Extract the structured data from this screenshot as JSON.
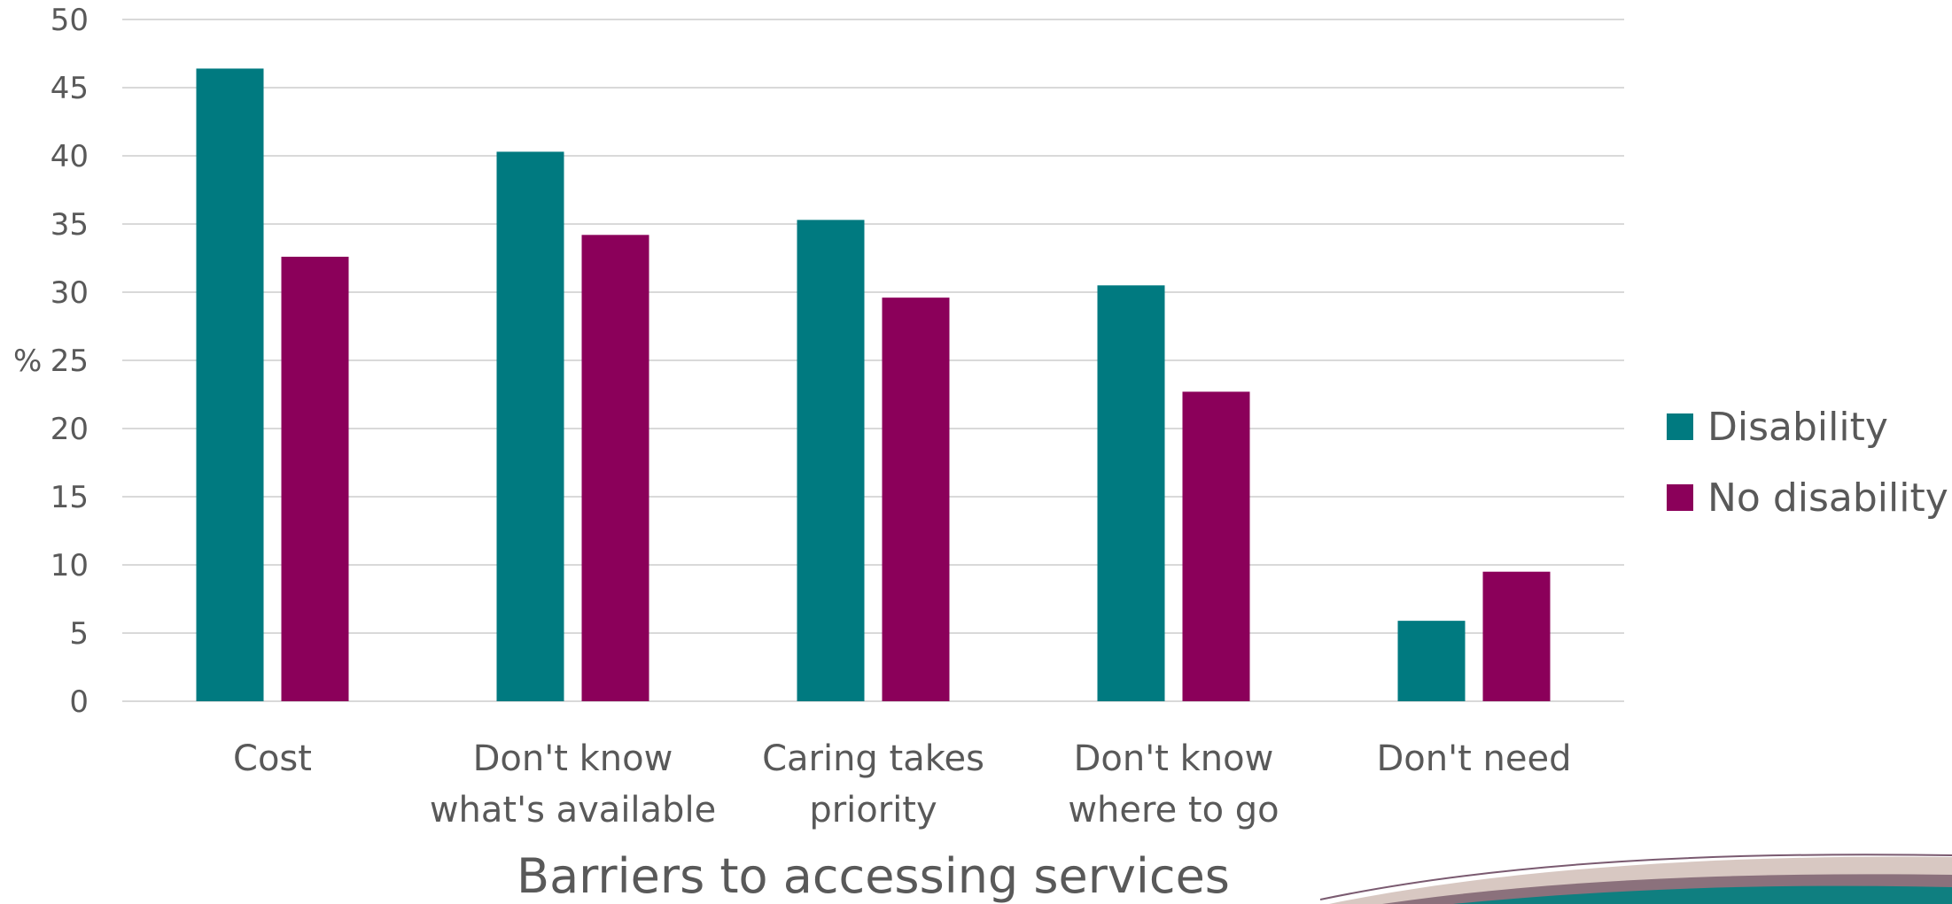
{
  "chart_data": {
    "type": "bar",
    "categories": [
      [
        "Cost"
      ],
      [
        "Don't know",
        "what's available"
      ],
      [
        "Caring takes",
        "priority"
      ],
      [
        "Don't know",
        "where to go"
      ],
      [
        "Don't need"
      ]
    ],
    "series": [
      {
        "name": "Disability",
        "color": "#007a80",
        "values": [
          46.4,
          40.3,
          35.3,
          30.5,
          5.9
        ]
      },
      {
        "name": "No disability",
        "color": "#8b005a",
        "values": [
          32.6,
          34.2,
          29.6,
          22.7,
          9.5
        ]
      }
    ],
    "xlabel": "Barriers to accessing services",
    "ylabel": "%",
    "ylim": [
      0,
      50
    ],
    "yticks": [
      0,
      5,
      10,
      15,
      20,
      25,
      30,
      35,
      40,
      45,
      50
    ],
    "grid": true,
    "legend": "right"
  }
}
